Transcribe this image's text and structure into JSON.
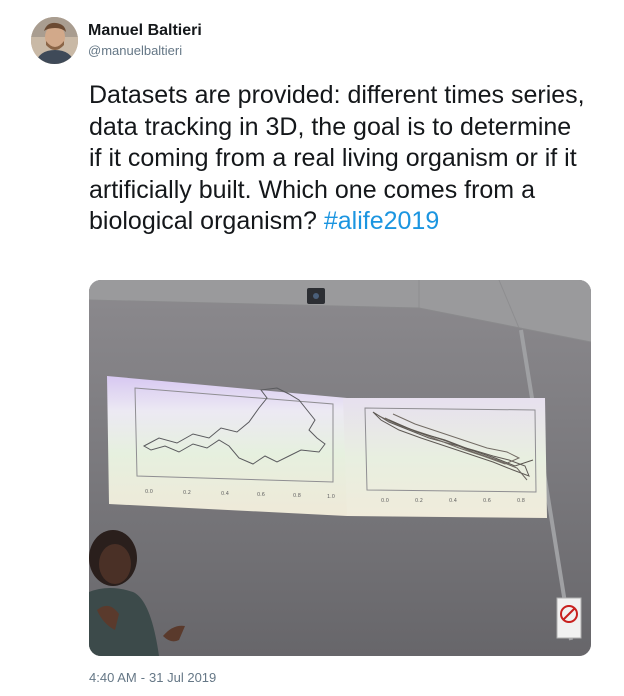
{
  "author": {
    "display_name": "Manuel Baltieri",
    "handle": "@manuelbaltieri",
    "avatar_icon": "person-portrait-icon"
  },
  "tweet": {
    "text": "Datasets are provided: different times series, data tracking in 3D, the goal is to determine if it coming from a real living organism or if it artificially built. Which one comes from a biological organism?",
    "hashtag": "#alife2019",
    "hashtag_color": "#1b95e0"
  },
  "media": {
    "description_icon": "photo-of-projected-trajectory-plots"
  },
  "timestamp": {
    "time": "4:40 AM",
    "separator": "-",
    "date": "31 Jul 2019"
  }
}
